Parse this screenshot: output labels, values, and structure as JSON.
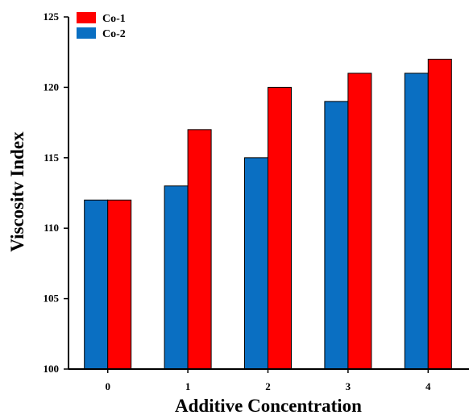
{
  "chart_data": {
    "type": "bar",
    "categories": [
      "0",
      "1",
      "2",
      "3",
      "4"
    ],
    "series": [
      {
        "name": "Co-2",
        "values": [
          112,
          113,
          115,
          119,
          121
        ],
        "color": "#0a6fc2"
      },
      {
        "name": "Co-1",
        "values": [
          112,
          117,
          120,
          121,
          122
        ],
        "color": "#ff0000"
      }
    ],
    "xlabel": "Additive Concentration",
    "ylabel": "Viscositv Index",
    "ylim": [
      100,
      125
    ],
    "yticks": [
      "100",
      "105",
      "110",
      "115",
      "120",
      "125"
    ],
    "grid": false,
    "legend": {
      "placement": "top-left",
      "entries": [
        {
          "name": "Co-1",
          "color": "#ff0000"
        },
        {
          "name": "Co-2",
          "color": "#0a6fc2"
        }
      ]
    }
  }
}
